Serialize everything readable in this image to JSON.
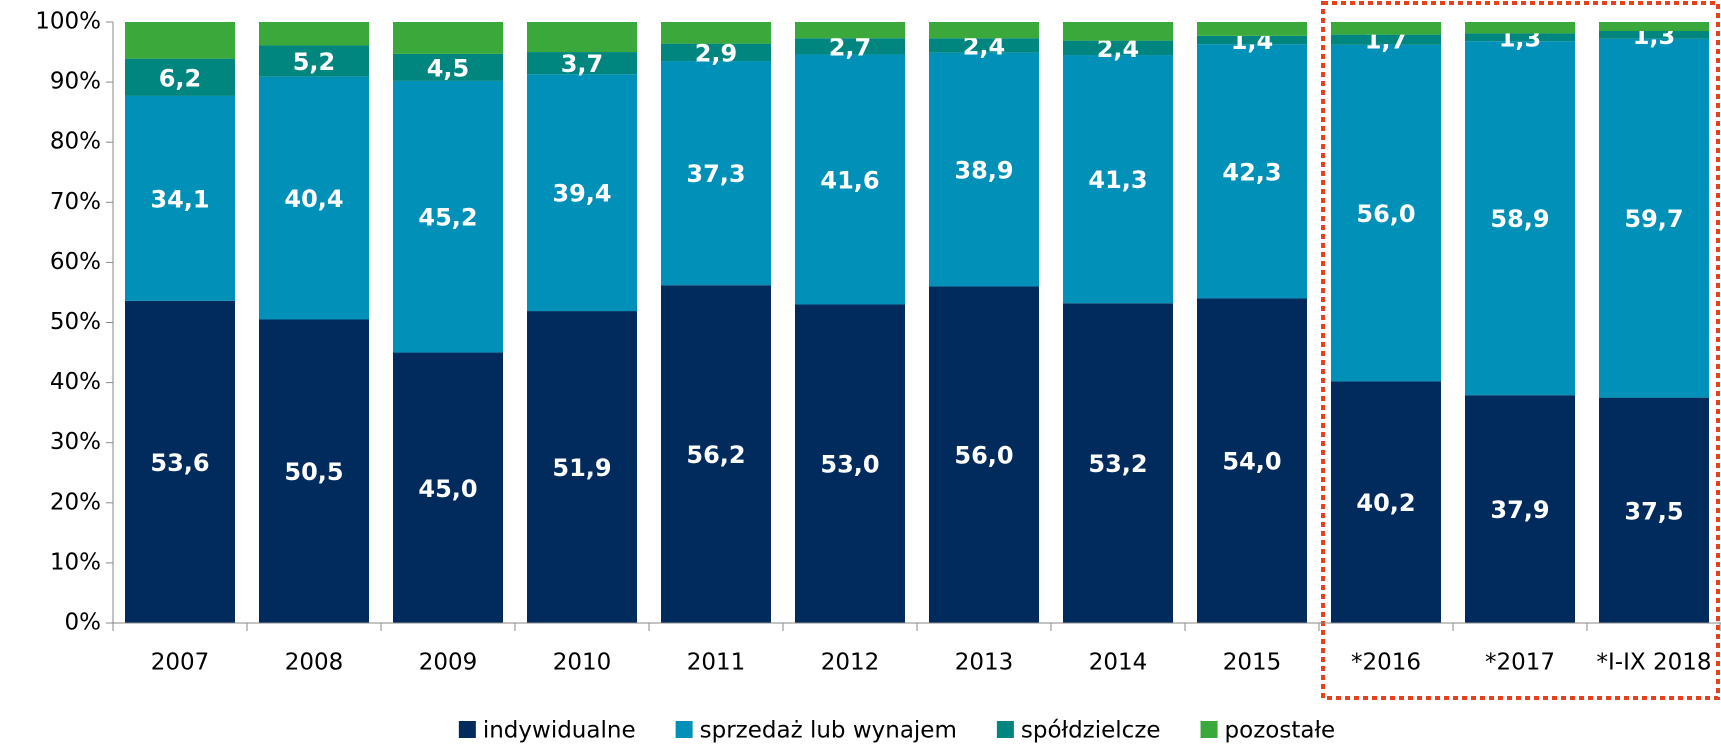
{
  "chart_data": {
    "type": "bar",
    "stacked": true,
    "categories": [
      "2007",
      "2008",
      "2009",
      "2010",
      "2011",
      "2012",
      "2013",
      "2014",
      "2015",
      "*2016",
      "*2017",
      "*I-IX 2018"
    ],
    "series": [
      {
        "name": "indywidualne",
        "color": "#002b5c",
        "values": [
          53.6,
          50.5,
          45.0,
          51.9,
          56.2,
          53.0,
          56.0,
          53.2,
          54.0,
          40.2,
          37.9,
          37.5
        ],
        "value_labels": [
          "53,6",
          "50,5",
          "45,0",
          "51,9",
          "56,2",
          "53,0",
          "56,0",
          "53,2",
          "54,0",
          "40,2",
          "37,9",
          "37,5"
        ]
      },
      {
        "name": "sprzedaż lub wynajem",
        "color": "#0090b8",
        "values": [
          34.1,
          40.4,
          45.2,
          39.4,
          37.3,
          41.6,
          38.9,
          41.3,
          42.3,
          56.0,
          58.9,
          59.7
        ],
        "value_labels": [
          "34,1",
          "40,4",
          "45,2",
          "39,4",
          "37,3",
          "41,6",
          "38,9",
          "41,3",
          "42,3",
          "56,0",
          "58,9",
          "59,7"
        ]
      },
      {
        "name": "spółdzielcze",
        "color": "#00857f",
        "values": [
          6.2,
          5.2,
          4.5,
          3.7,
          2.9,
          2.7,
          2.4,
          2.4,
          1.4,
          1.7,
          1.3,
          1.3
        ],
        "value_labels": [
          "6,2",
          "5,2",
          "4,5",
          "3,7",
          "2,9",
          "2,7",
          "2,4",
          "2,4",
          "1,4",
          "1,7",
          "1,3",
          "1,3"
        ]
      },
      {
        "name": "pozostałe",
        "color": "#3aa83a",
        "values": [
          6.1,
          3.9,
          5.3,
          5.0,
          3.6,
          2.7,
          2.7,
          3.1,
          2.3,
          2.1,
          1.9,
          1.5
        ]
      }
    ],
    "ylim": [
      0,
      100
    ],
    "yticks": [
      {
        "value": 0,
        "label": "0%"
      },
      {
        "value": 10,
        "label": "10%"
      },
      {
        "value": 20,
        "label": "20%"
      },
      {
        "value": 30,
        "label": "30%"
      },
      {
        "value": 40,
        "label": "40%"
      },
      {
        "value": 50,
        "label": "50%"
      },
      {
        "value": 60,
        "label": "60%"
      },
      {
        "value": 70,
        "label": "70%"
      },
      {
        "value": 80,
        "label": "80%"
      },
      {
        "value": 90,
        "label": "90%"
      },
      {
        "value": 100,
        "label": "100%"
      }
    ],
    "legend": "bottom"
  }
}
